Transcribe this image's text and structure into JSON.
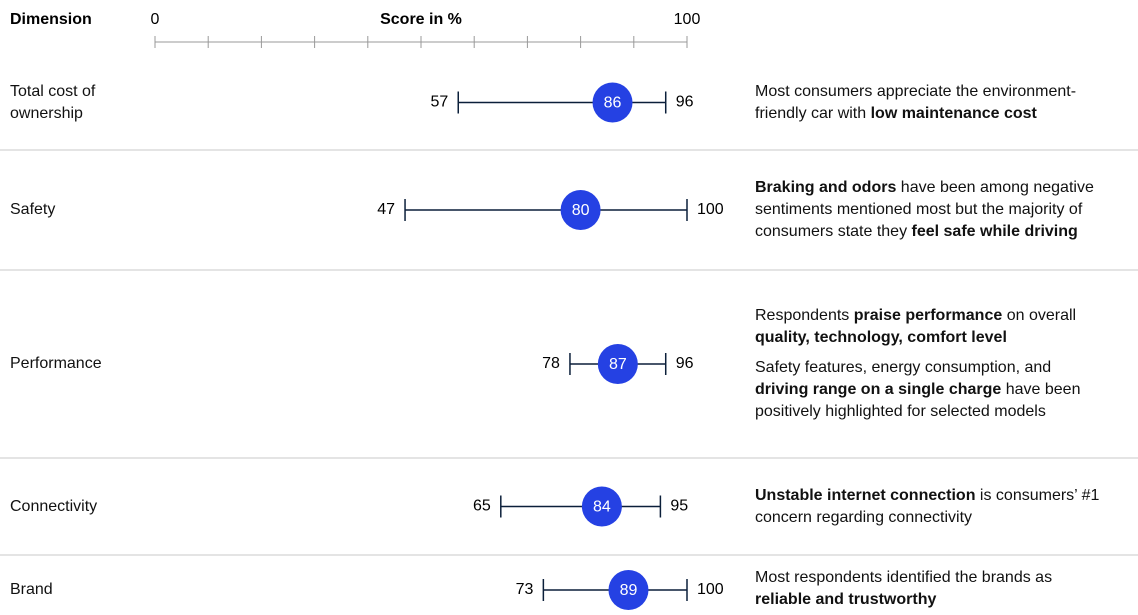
{
  "chart_data": {
    "type": "range",
    "dimension_header": "Dimension",
    "axis_title": "Score in %",
    "xlim": [
      0,
      100
    ],
    "xticks": [
      0,
      10,
      20,
      30,
      40,
      50,
      60,
      70,
      80,
      90,
      100
    ],
    "color": "#2541e3",
    "line_color": "#0b1f3a",
    "categories": [
      "Total cost of ownership",
      "Safety",
      "Performance",
      "Connectivity",
      "Brand"
    ],
    "low": [
      57,
      47,
      78,
      65,
      73
    ],
    "score": [
      86,
      80,
      87,
      84,
      89
    ],
    "high": [
      96,
      100,
      96,
      95,
      100
    ],
    "comments": [
      [
        [
          {
            "text": "Most consumers appreciate the environment-friendly car with "
          },
          {
            "text": "low maintenance cost",
            "bold": true
          }
        ]
      ],
      [
        [
          {
            "text": "Braking and odors",
            "bold": true
          },
          {
            "text": " have been among negative sentiments mentioned most but the majority of consumers state they "
          },
          {
            "text": "feel safe while driving",
            "bold": true
          }
        ]
      ],
      [
        [
          {
            "text": "Respondents "
          },
          {
            "text": "praise performance",
            "bold": true
          },
          {
            "text": " on overall "
          },
          {
            "text": "quality, technology, comfort level",
            "bold": true
          }
        ],
        [
          {
            "text": "Safety features, energy consumption, and "
          },
          {
            "text": "driving range on a single charge",
            "bold": true
          },
          {
            "text": " have been positively highlighted for selected models"
          }
        ]
      ],
      [
        [
          {
            "text": "Unstable internet connection",
            "bold": true
          },
          {
            "text": " is consumers’ #1 concern regarding connectivity"
          }
        ]
      ],
      [
        [
          {
            "text": "Most respondents identified the brands as "
          },
          {
            "text": "reliable and trustworthy",
            "bold": true
          }
        ]
      ]
    ]
  }
}
